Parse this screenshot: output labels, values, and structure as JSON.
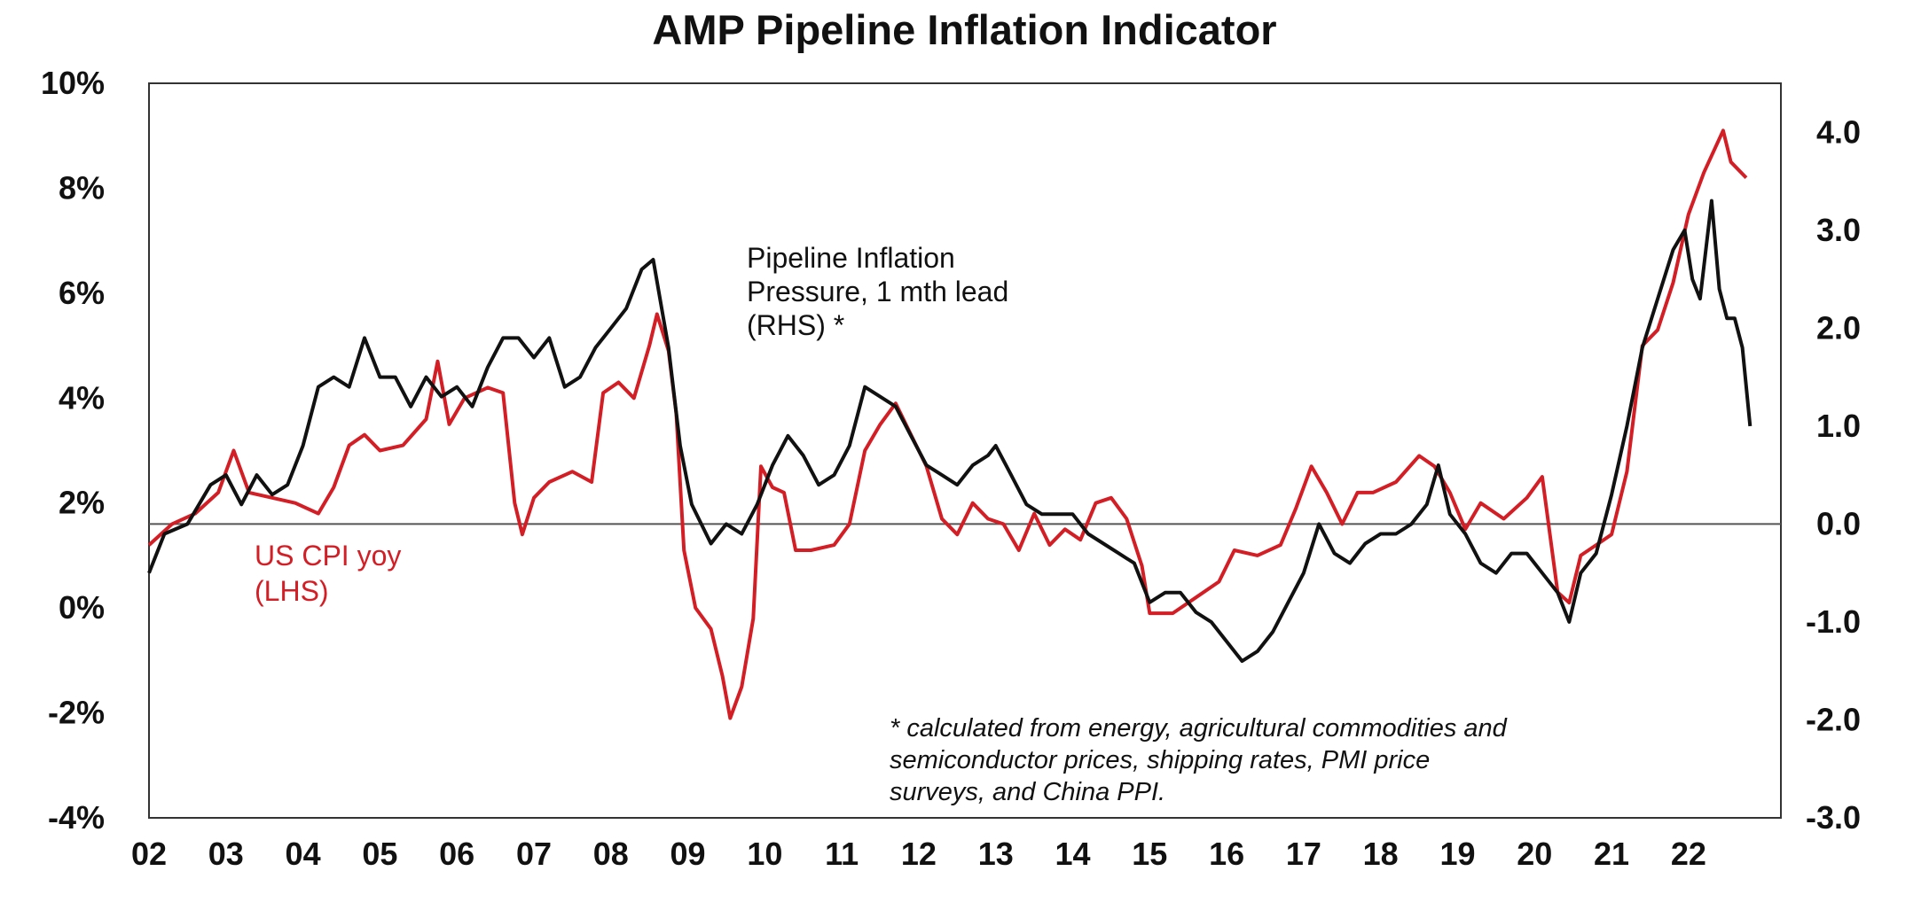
{
  "chart_data": {
    "type": "line",
    "title": "AMP Pipeline Inflation Indicator",
    "xlabel": "",
    "ylabel_left": "",
    "ylabel_right": "",
    "x_ticks": [
      "02",
      "03",
      "04",
      "05",
      "06",
      "07",
      "08",
      "09",
      "10",
      "11",
      "12",
      "13",
      "14",
      "15",
      "16",
      "17",
      "18",
      "19",
      "20",
      "21",
      "22"
    ],
    "y_left": {
      "range": [
        -4,
        10
      ],
      "ticks": [
        "10%",
        "8%",
        "6%",
        "4%",
        "2%",
        "0%",
        "-2%",
        "-4%"
      ],
      "values": [
        10,
        8,
        6,
        4,
        2,
        0,
        -2,
        -4
      ]
    },
    "y_right": {
      "range": [
        -3.0,
        4.5
      ],
      "ticks": [
        "4.0",
        "3.0",
        "2.0",
        "1.0",
        "0.0",
        "-1.0",
        "-2.0",
        "-3.0"
      ],
      "values": [
        4,
        3,
        2,
        1,
        0,
        -1,
        -2,
        -3
      ]
    },
    "zero_line_right": 0.0,
    "grid": false,
    "series": [
      {
        "name": "US CPI yoy\n(LHS)",
        "axis": "left",
        "color": "#d21e24",
        "label_lines": [
          "US CPI yoy",
          "(LHS)"
        ],
        "points": [
          [
            2002.0,
            1.2
          ],
          [
            2002.3,
            1.6
          ],
          [
            2002.6,
            1.8
          ],
          [
            2002.9,
            2.2
          ],
          [
            2003.1,
            3.0
          ],
          [
            2003.3,
            2.2
          ],
          [
            2003.6,
            2.1
          ],
          [
            2003.9,
            2.0
          ],
          [
            2004.2,
            1.8
          ],
          [
            2004.4,
            2.3
          ],
          [
            2004.6,
            3.1
          ],
          [
            2004.8,
            3.3
          ],
          [
            2005.0,
            3.0
          ],
          [
            2005.3,
            3.1
          ],
          [
            2005.6,
            3.6
          ],
          [
            2005.75,
            4.7
          ],
          [
            2005.9,
            3.5
          ],
          [
            2006.1,
            4.0
          ],
          [
            2006.4,
            4.2
          ],
          [
            2006.6,
            4.1
          ],
          [
            2006.75,
            2.0
          ],
          [
            2006.85,
            1.4
          ],
          [
            2007.0,
            2.1
          ],
          [
            2007.2,
            2.4
          ],
          [
            2007.5,
            2.6
          ],
          [
            2007.75,
            2.4
          ],
          [
            2007.9,
            4.1
          ],
          [
            2008.1,
            4.3
          ],
          [
            2008.3,
            4.0
          ],
          [
            2008.5,
            5.0
          ],
          [
            2008.6,
            5.6
          ],
          [
            2008.75,
            4.9
          ],
          [
            2008.85,
            3.7
          ],
          [
            2008.95,
            1.1
          ],
          [
            2009.1,
            0.0
          ],
          [
            2009.3,
            -0.4
          ],
          [
            2009.45,
            -1.3
          ],
          [
            2009.55,
            -2.1
          ],
          [
            2009.7,
            -1.5
          ],
          [
            2009.85,
            -0.2
          ],
          [
            2009.95,
            2.7
          ],
          [
            2010.1,
            2.3
          ],
          [
            2010.25,
            2.2
          ],
          [
            2010.4,
            1.1
          ],
          [
            2010.6,
            1.1
          ],
          [
            2010.9,
            1.2
          ],
          [
            2011.1,
            1.6
          ],
          [
            2011.3,
            3.0
          ],
          [
            2011.5,
            3.5
          ],
          [
            2011.7,
            3.9
          ],
          [
            2011.9,
            3.3
          ],
          [
            2012.1,
            2.7
          ],
          [
            2012.3,
            1.7
          ],
          [
            2012.5,
            1.4
          ],
          [
            2012.7,
            2.0
          ],
          [
            2012.9,
            1.7
          ],
          [
            2013.1,
            1.6
          ],
          [
            2013.3,
            1.1
          ],
          [
            2013.5,
            1.8
          ],
          [
            2013.7,
            1.2
          ],
          [
            2013.9,
            1.5
          ],
          [
            2014.1,
            1.3
          ],
          [
            2014.3,
            2.0
          ],
          [
            2014.5,
            2.1
          ],
          [
            2014.7,
            1.7
          ],
          [
            2014.9,
            0.8
          ],
          [
            2015.0,
            -0.1
          ],
          [
            2015.3,
            -0.1
          ],
          [
            2015.6,
            0.2
          ],
          [
            2015.9,
            0.5
          ],
          [
            2016.1,
            1.1
          ],
          [
            2016.4,
            1.0
          ],
          [
            2016.7,
            1.2
          ],
          [
            2016.9,
            1.9
          ],
          [
            2017.1,
            2.7
          ],
          [
            2017.3,
            2.2
          ],
          [
            2017.5,
            1.6
          ],
          [
            2017.7,
            2.2
          ],
          [
            2017.9,
            2.2
          ],
          [
            2018.2,
            2.4
          ],
          [
            2018.5,
            2.9
          ],
          [
            2018.7,
            2.7
          ],
          [
            2018.9,
            2.2
          ],
          [
            2019.1,
            1.5
          ],
          [
            2019.3,
            2.0
          ],
          [
            2019.6,
            1.7
          ],
          [
            2019.9,
            2.1
          ],
          [
            2020.1,
            2.5
          ],
          [
            2020.3,
            0.3
          ],
          [
            2020.45,
            0.1
          ],
          [
            2020.6,
            1.0
          ],
          [
            2020.8,
            1.2
          ],
          [
            2021.0,
            1.4
          ],
          [
            2021.2,
            2.6
          ],
          [
            2021.4,
            5.0
          ],
          [
            2021.6,
            5.3
          ],
          [
            2021.8,
            6.2
          ],
          [
            2022.0,
            7.5
          ],
          [
            2022.2,
            8.3
          ],
          [
            2022.45,
            9.1
          ],
          [
            2022.55,
            8.5
          ],
          [
            2022.75,
            8.2
          ]
        ]
      },
      {
        "name": "Pipeline Inflation\nPressure, 1 mth lead\n(RHS) *",
        "axis": "right",
        "color": "#111111",
        "label_lines": [
          "Pipeline Inflation",
          "Pressure, 1 mth lead",
          "(RHS) *"
        ],
        "points": [
          [
            2002.0,
            -0.5
          ],
          [
            2002.2,
            -0.1
          ],
          [
            2002.5,
            0.0
          ],
          [
            2002.8,
            0.4
          ],
          [
            2003.0,
            0.5
          ],
          [
            2003.2,
            0.2
          ],
          [
            2003.4,
            0.5
          ],
          [
            2003.6,
            0.3
          ],
          [
            2003.8,
            0.4
          ],
          [
            2004.0,
            0.8
          ],
          [
            2004.2,
            1.4
          ],
          [
            2004.4,
            1.5
          ],
          [
            2004.6,
            1.4
          ],
          [
            2004.8,
            1.9
          ],
          [
            2005.0,
            1.5
          ],
          [
            2005.2,
            1.5
          ],
          [
            2005.4,
            1.2
          ],
          [
            2005.6,
            1.5
          ],
          [
            2005.8,
            1.3
          ],
          [
            2006.0,
            1.4
          ],
          [
            2006.2,
            1.2
          ],
          [
            2006.4,
            1.6
          ],
          [
            2006.6,
            1.9
          ],
          [
            2006.8,
            1.9
          ],
          [
            2007.0,
            1.7
          ],
          [
            2007.2,
            1.9
          ],
          [
            2007.4,
            1.4
          ],
          [
            2007.6,
            1.5
          ],
          [
            2007.8,
            1.8
          ],
          [
            2008.0,
            2.0
          ],
          [
            2008.2,
            2.2
          ],
          [
            2008.4,
            2.6
          ],
          [
            2008.55,
            2.7
          ],
          [
            2008.75,
            1.8
          ],
          [
            2008.9,
            0.8
          ],
          [
            2009.05,
            0.2
          ],
          [
            2009.3,
            -0.2
          ],
          [
            2009.5,
            0.0
          ],
          [
            2009.7,
            -0.1
          ],
          [
            2009.9,
            0.2
          ],
          [
            2010.1,
            0.6
          ],
          [
            2010.3,
            0.9
          ],
          [
            2010.5,
            0.7
          ],
          [
            2010.7,
            0.4
          ],
          [
            2010.9,
            0.5
          ],
          [
            2011.1,
            0.8
          ],
          [
            2011.3,
            1.4
          ],
          [
            2011.5,
            1.3
          ],
          [
            2011.7,
            1.2
          ],
          [
            2011.9,
            0.9
          ],
          [
            2012.1,
            0.6
          ],
          [
            2012.3,
            0.5
          ],
          [
            2012.5,
            0.4
          ],
          [
            2012.7,
            0.6
          ],
          [
            2012.9,
            0.7
          ],
          [
            2013.0,
            0.8
          ],
          [
            2013.2,
            0.5
          ],
          [
            2013.4,
            0.2
          ],
          [
            2013.6,
            0.1
          ],
          [
            2013.8,
            0.1
          ],
          [
            2014.0,
            0.1
          ],
          [
            2014.2,
            -0.1
          ],
          [
            2014.4,
            -0.2
          ],
          [
            2014.6,
            -0.3
          ],
          [
            2014.8,
            -0.4
          ],
          [
            2015.0,
            -0.8
          ],
          [
            2015.2,
            -0.7
          ],
          [
            2015.4,
            -0.7
          ],
          [
            2015.6,
            -0.9
          ],
          [
            2015.8,
            -1.0
          ],
          [
            2016.0,
            -1.2
          ],
          [
            2016.2,
            -1.4
          ],
          [
            2016.4,
            -1.3
          ],
          [
            2016.6,
            -1.1
          ],
          [
            2016.8,
            -0.8
          ],
          [
            2017.0,
            -0.5
          ],
          [
            2017.2,
            0.0
          ],
          [
            2017.4,
            -0.3
          ],
          [
            2017.6,
            -0.4
          ],
          [
            2017.8,
            -0.2
          ],
          [
            2018.0,
            -0.1
          ],
          [
            2018.2,
            -0.1
          ],
          [
            2018.4,
            0.0
          ],
          [
            2018.6,
            0.2
          ],
          [
            2018.75,
            0.6
          ],
          [
            2018.9,
            0.1
          ],
          [
            2019.1,
            -0.1
          ],
          [
            2019.3,
            -0.4
          ],
          [
            2019.5,
            -0.5
          ],
          [
            2019.7,
            -0.3
          ],
          [
            2019.9,
            -0.3
          ],
          [
            2020.1,
            -0.5
          ],
          [
            2020.3,
            -0.7
          ],
          [
            2020.45,
            -1.0
          ],
          [
            2020.6,
            -0.5
          ],
          [
            2020.8,
            -0.3
          ],
          [
            2021.0,
            0.3
          ],
          [
            2021.2,
            1.0
          ],
          [
            2021.4,
            1.8
          ],
          [
            2021.6,
            2.3
          ],
          [
            2021.8,
            2.8
          ],
          [
            2021.95,
            3.0
          ],
          [
            2022.05,
            2.5
          ],
          [
            2022.15,
            2.3
          ],
          [
            2022.3,
            3.3
          ],
          [
            2022.4,
            2.4
          ],
          [
            2022.5,
            2.1
          ],
          [
            2022.6,
            2.1
          ],
          [
            2022.7,
            1.8
          ],
          [
            2022.8,
            1.0
          ]
        ]
      }
    ],
    "footnote_lines": [
      "* calculated from energy, agricultural commodities and",
      "semiconductor prices, shipping rates, PMI price",
      "surveys, and China PPI."
    ]
  }
}
